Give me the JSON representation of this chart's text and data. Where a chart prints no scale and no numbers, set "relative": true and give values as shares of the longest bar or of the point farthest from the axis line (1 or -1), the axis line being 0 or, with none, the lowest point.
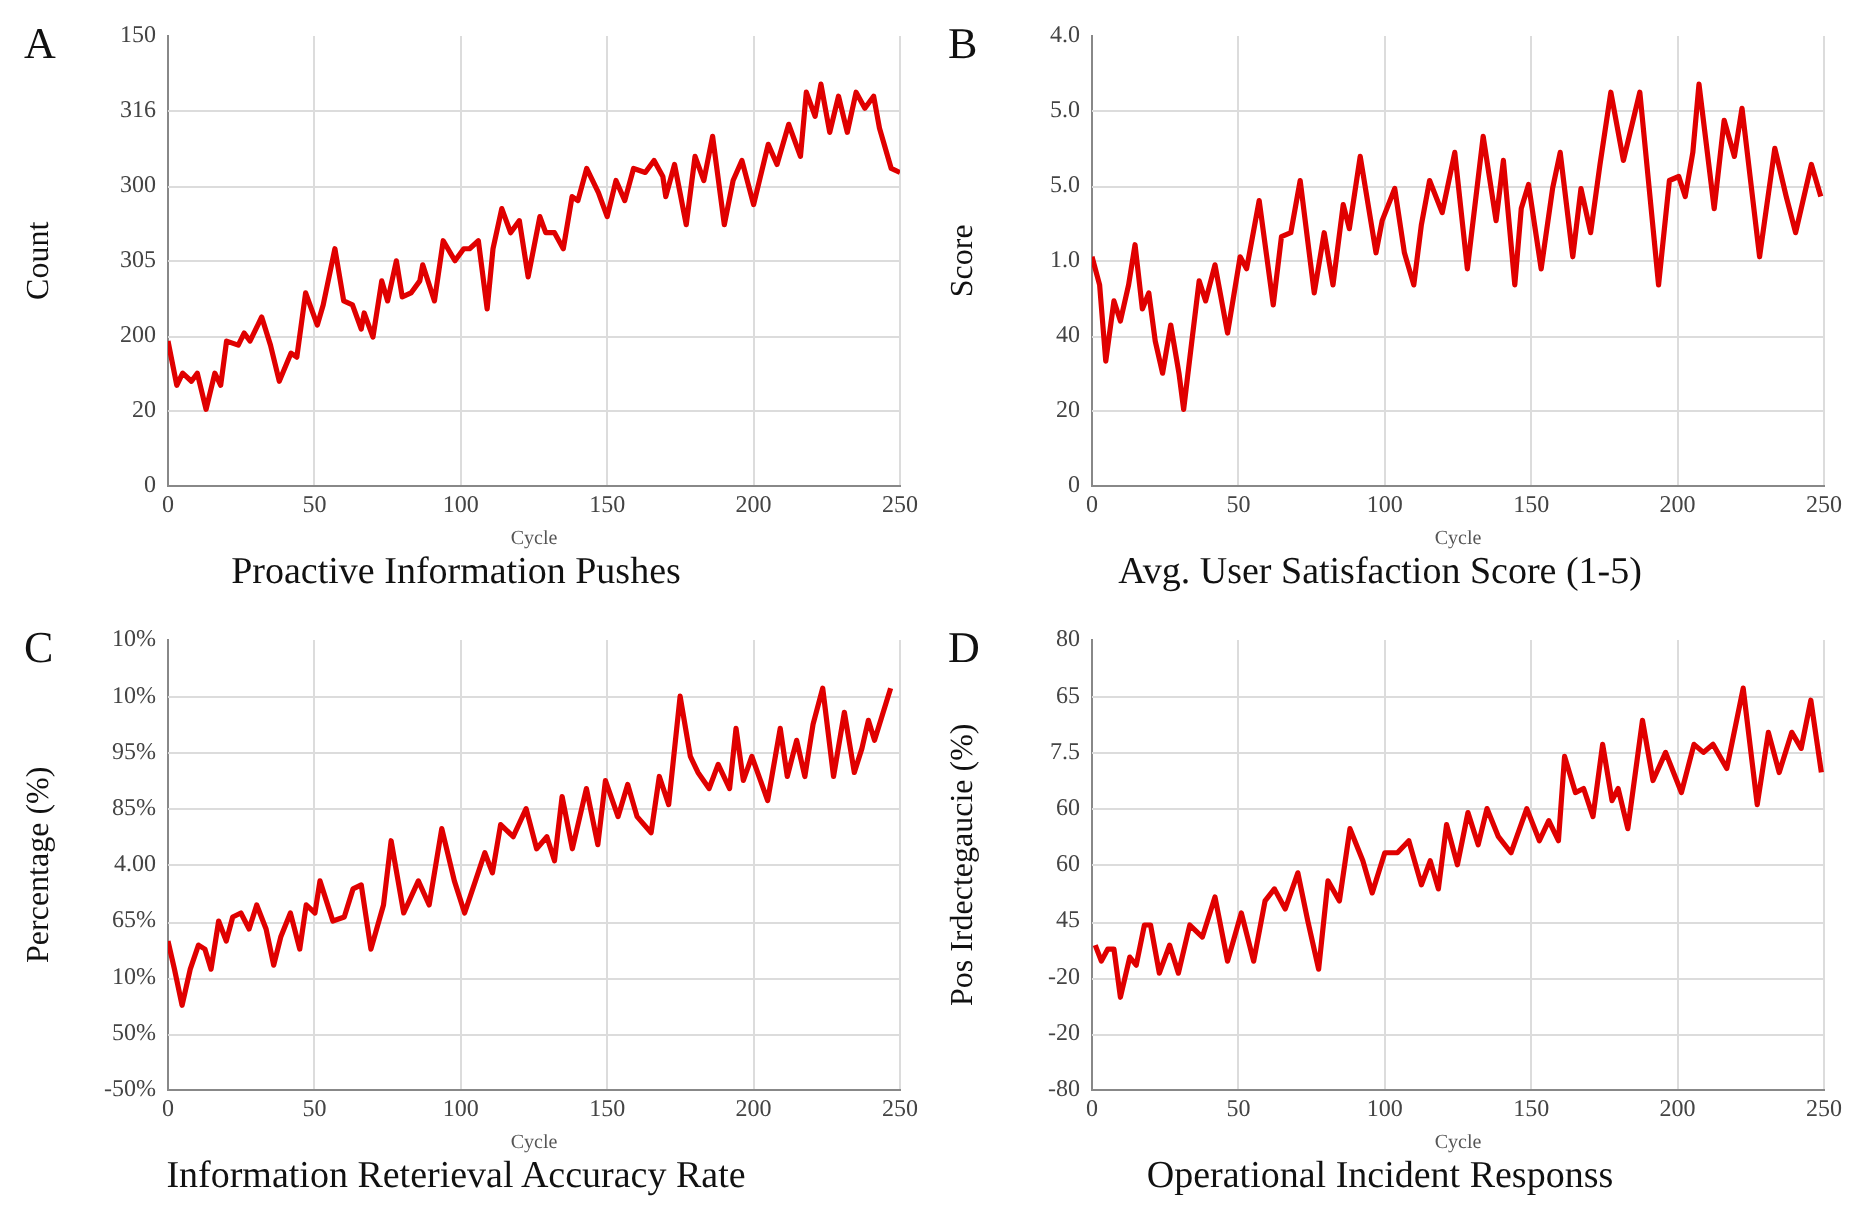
{
  "chart_data": [
    {
      "type": "line",
      "relative": true,
      "title": "Proactive Information Pushes",
      "xlabel": "Cycle",
      "ylabel": "Count",
      "annotations": [
        "A",
        "150",
        "316",
        "300",
        "305",
        "200",
        "20",
        "0"
      ],
      "grid": true,
      "xlim": [
        0,
        250
      ],
      "xticks": [
        0,
        50,
        100,
        150,
        200,
        250
      ],
      "x": [
        0,
        3,
        5,
        8,
        10,
        13,
        16,
        18,
        20,
        24,
        26,
        28,
        32,
        35,
        38,
        42,
        44,
        47,
        51,
        53,
        57,
        60,
        63,
        66,
        67,
        70,
        73,
        75,
        78,
        80,
        83,
        86,
        87,
        91,
        94,
        98,
        101,
        103,
        106,
        109,
        111,
        114,
        117,
        120,
        123,
        127,
        129,
        132,
        135,
        138,
        140,
        143,
        147,
        150,
        153,
        156,
        159,
        163,
        166,
        169,
        170,
        173,
        177,
        180,
        183,
        186,
        190,
        193,
        196,
        200,
        205,
        208,
        212,
        216,
        218,
        221,
        223,
        226,
        229,
        232,
        235,
        238,
        241,
        243,
        247,
        250
      ],
      "series": [
        {
          "color": "#e00000",
          "values": [
            0.36,
            0.25,
            0.28,
            0.26,
            0.28,
            0.19,
            0.28,
            0.25,
            0.36,
            0.35,
            0.38,
            0.36,
            0.42,
            0.35,
            0.26,
            0.33,
            0.32,
            0.48,
            0.4,
            0.45,
            0.59,
            0.46,
            0.45,
            0.39,
            0.43,
            0.37,
            0.51,
            0.46,
            0.56,
            0.47,
            0.48,
            0.51,
            0.55,
            0.46,
            0.61,
            0.56,
            0.59,
            0.59,
            0.61,
            0.44,
            0.59,
            0.69,
            0.63,
            0.66,
            0.52,
            0.67,
            0.63,
            0.63,
            0.59,
            0.72,
            0.71,
            0.79,
            0.73,
            0.67,
            0.76,
            0.71,
            0.79,
            0.78,
            0.81,
            0.77,
            0.72,
            0.8,
            0.65,
            0.82,
            0.76,
            0.87,
            0.65,
            0.76,
            0.81,
            0.7,
            0.85,
            0.8,
            0.9,
            0.82,
            0.98,
            0.92,
            1,
            0.88,
            0.97,
            0.88,
            0.98,
            0.94,
            0.97,
            0.89,
            0.79,
            0.78
          ]
        }
      ]
    },
    {
      "type": "line",
      "relative": true,
      "title": "Avg. User Satisfaction Score (1-5)",
      "xlabel": "Cycle",
      "ylabel": "Score",
      "annotations": [
        "B",
        "4.0",
        "5.0",
        "5.0",
        "1.0",
        "40",
        "20",
        "0"
      ],
      "grid": true,
      "xlim": [
        0,
        250
      ],
      "xticks": [
        0,
        50,
        100,
        150,
        200,
        250
      ],
      "x": [
        0,
        2.6,
        4.7,
        7.5,
        9.7,
        12.5,
        14.7,
        17.2,
        19.4,
        21.6,
        24.1,
        26.9,
        29.7,
        31.3,
        34.1,
        36.6,
        38.8,
        42,
        46.3,
        50.6,
        52.8,
        57.1,
        61.9,
        64.7,
        67.9,
        71.1,
        75.9,
        79.3,
        82.3,
        85.8,
        87.9,
        91.6,
        97,
        99.1,
        103.4,
        106.7,
        109.9,
        112.5,
        115.3,
        119.6,
        123.9,
        128.2,
        133.6,
        138,
        140.5,
        144.4,
        146.6,
        149.1,
        153.4,
        157.3,
        159.9,
        164.2,
        167,
        170.3,
        173.5,
        177.2,
        181.5,
        187.1,
        193.5,
        197.2,
        200.4,
        202.6,
        205.2,
        207.3,
        212.5,
        215.9,
        219.4,
        222,
        228,
        233.2,
        237.1,
        240.3,
        245.7,
        248.9
      ],
      "series": [
        {
          "color": "#e00000",
          "values": [
            0.57,
            0.5,
            0.31,
            0.46,
            0.41,
            0.5,
            0.6,
            0.44,
            0.48,
            0.36,
            0.28,
            0.4,
            0.28,
            0.19,
            0.36,
            0.51,
            0.46,
            0.55,
            0.38,
            0.57,
            0.54,
            0.71,
            0.45,
            0.62,
            0.63,
            0.76,
            0.48,
            0.63,
            0.5,
            0.7,
            0.64,
            0.82,
            0.58,
            0.66,
            0.74,
            0.58,
            0.5,
            0.65,
            0.76,
            0.68,
            0.83,
            0.54,
            0.87,
            0.66,
            0.81,
            0.5,
            0.69,
            0.75,
            0.54,
            0.74,
            0.83,
            0.57,
            0.74,
            0.63,
            0.8,
            0.98,
            0.81,
            0.98,
            0.5,
            0.76,
            0.77,
            0.72,
            0.83,
            1,
            0.69,
            0.91,
            0.82,
            0.94,
            0.57,
            0.84,
            0.72,
            0.63,
            0.8,
            0.72
          ]
        }
      ]
    },
    {
      "type": "line",
      "relative": true,
      "title": "Information Reterieval Accuracy Rate",
      "xlabel": "Cycle",
      "ylabel": "Percentage (%)",
      "annotations": [
        "C",
        "10%",
        "10%",
        "95%",
        "85%",
        "4.00",
        "65%",
        "10%",
        "50%",
        "-50%"
      ],
      "grid": true,
      "xlim": [
        0,
        250
      ],
      "xticks": [
        0,
        50,
        100,
        150,
        200,
        250
      ],
      "x": [
        0,
        2.2,
        4.8,
        7.6,
        10.4,
        12.6,
        14.7,
        17.3,
        19.9,
        22.1,
        24.9,
        27.7,
        30.3,
        33.5,
        36.1,
        38.5,
        41.8,
        45,
        47.2,
        50.2,
        51.9,
        56.3,
        60.2,
        63.2,
        66,
        69.3,
        73.6,
        76.2,
        80.5,
        85.5,
        89.2,
        93.5,
        97.8,
        101.3,
        105,
        108.2,
        110.8,
        113.6,
        117.9,
        122.3,
        125.9,
        129.4,
        132,
        134.6,
        138.1,
        142.9,
        146.8,
        149.4,
        153.7,
        157,
        160.2,
        165,
        167.8,
        171,
        174.9,
        178.4,
        181,
        184.8,
        187.9,
        191.8,
        194,
        196.5,
        199.4,
        204.8,
        209.1,
        211.5,
        214.7,
        217.5,
        220.3,
        223.6,
        227.3,
        231,
        234.4,
        237,
        239.2,
        241.3,
        246.8
      ],
      "series": [
        {
          "color": "#e00000",
          "values": [
            0.37,
            0.3,
            0.21,
            0.3,
            0.36,
            0.35,
            0.3,
            0.42,
            0.37,
            0.43,
            0.44,
            0.4,
            0.46,
            0.4,
            0.31,
            0.38,
            0.44,
            0.35,
            0.46,
            0.44,
            0.52,
            0.42,
            0.43,
            0.5,
            0.51,
            0.35,
            0.46,
            0.62,
            0.44,
            0.52,
            0.46,
            0.65,
            0.52,
            0.44,
            0.52,
            0.59,
            0.54,
            0.66,
            0.63,
            0.7,
            0.6,
            0.63,
            0.57,
            0.73,
            0.6,
            0.75,
            0.61,
            0.77,
            0.68,
            0.76,
            0.68,
            0.64,
            0.78,
            0.71,
            0.98,
            0.83,
            0.79,
            0.75,
            0.81,
            0.75,
            0.9,
            0.77,
            0.83,
            0.72,
            0.9,
            0.78,
            0.87,
            0.78,
            0.91,
            1,
            0.78,
            0.94,
            0.79,
            0.85,
            0.92,
            0.87,
            1
          ]
        }
      ]
    },
    {
      "type": "line",
      "relative": true,
      "title": "Operational Incident Responss",
      "xlabel": "Cycle",
      "ylabel": "Pos Irdectegaucie (%)",
      "annotations": [
        "D",
        "80",
        "65",
        "7.5",
        "60",
        "60",
        "45",
        "-20",
        "-20",
        "-80"
      ],
      "grid": true,
      "xlim": [
        0,
        250
      ],
      "xticks": [
        0,
        50,
        100,
        150,
        200,
        250
      ],
      "x": [
        1.1,
        3.2,
        5.4,
        7.5,
        9.7,
        12.9,
        15.1,
        17.9,
        20,
        23,
        26.5,
        29.5,
        33.4,
        37.7,
        42,
        46.3,
        51,
        55.2,
        59.1,
        62.3,
        66,
        70.3,
        73.7,
        77.4,
        80.6,
        84.5,
        88.1,
        92.5,
        95.7,
        100,
        104.3,
        108.2,
        112.5,
        115.5,
        118.3,
        121.1,
        124.8,
        128.4,
        131.9,
        134.9,
        138.8,
        143.1,
        148.5,
        152.8,
        156,
        159.3,
        161.4,
        165.1,
        167.9,
        171.1,
        174.4,
        177.6,
        179.7,
        183,
        188,
        191.6,
        195.9,
        201.3,
        205.6,
        208.8,
        212.1,
        216.8,
        222.4,
        227.2,
        231,
        234.7,
        239,
        242.2,
        245.5,
        249.1
      ],
      "series": [
        {
          "color": "#e00000",
          "values": [
            0.36,
            0.32,
            0.35,
            0.35,
            0.23,
            0.33,
            0.31,
            0.41,
            0.41,
            0.29,
            0.36,
            0.29,
            0.41,
            0.38,
            0.48,
            0.32,
            0.44,
            0.32,
            0.47,
            0.5,
            0.45,
            0.54,
            0.42,
            0.3,
            0.52,
            0.47,
            0.65,
            0.57,
            0.49,
            0.59,
            0.59,
            0.62,
            0.51,
            0.57,
            0.5,
            0.66,
            0.56,
            0.69,
            0.61,
            0.7,
            0.63,
            0.59,
            0.7,
            0.62,
            0.67,
            0.62,
            0.83,
            0.74,
            0.75,
            0.68,
            0.86,
            0.72,
            0.75,
            0.65,
            0.92,
            0.77,
            0.84,
            0.74,
            0.86,
            0.84,
            0.86,
            0.8,
            1,
            0.71,
            0.89,
            0.79,
            0.89,
            0.85,
            0.97,
            0.79
          ]
        }
      ]
    }
  ]
}
